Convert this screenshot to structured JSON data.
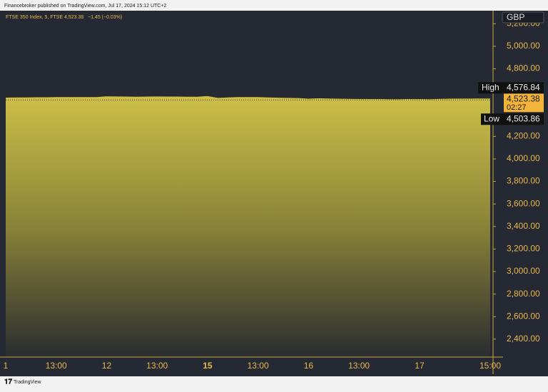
{
  "header": "Financebroker published on TradingView.com, Jul 17, 2024 15:12 UTC+2",
  "footer": "TradingView",
  "chart_data": {
    "type": "area",
    "title": "FTSE 350 Index, 5, FTSE",
    "change": "−1.45 (−0.03%)",
    "currency": "GBP",
    "countdown": "02:27",
    "last_price": {
      "value": 4523.38,
      "label": "4,523.38"
    },
    "high": {
      "name": "High",
      "value": 4576.84,
      "label": "4,576.84"
    },
    "low": {
      "name": "Low",
      "value": 4503.86,
      "label": "4,503.86"
    },
    "categories": [
      "1",
      null,
      null,
      null,
      null,
      "13:00",
      null,
      null,
      null,
      null,
      "12",
      null,
      null,
      null,
      null,
      "13:00",
      null,
      null,
      null,
      null,
      "15",
      null,
      null,
      null,
      null,
      "13:00",
      null,
      null,
      null,
      null,
      "16",
      null,
      null,
      null,
      null,
      "13:00",
      null,
      null,
      null,
      null,
      null,
      "17",
      null,
      null,
      null,
      null,
      null,
      null,
      "15:00"
    ],
    "series": [
      {
        "name": "FTSE 350 Index",
        "color": "#c9bb45",
        "values": [
          4548,
          4549,
          4550,
          4551,
          4551,
          4552,
          4552,
          4553,
          4552,
          4553,
          4560,
          4558,
          4557,
          4556,
          4557,
          4558,
          4557,
          4557,
          4556,
          4556,
          4562,
          4545,
          4550,
          4552,
          4553,
          4552,
          4549,
          4547,
          4545,
          4544,
          4538,
          4542,
          4540,
          4538,
          4537,
          4536,
          4535,
          4536,
          4533,
          4534,
          4536,
          4535,
          4534,
          4537,
          4538,
          4540,
          4539,
          4541,
          4540
        ]
      }
    ],
    "ylim": [
      2247,
      5316
    ],
    "yticks": [
      {
        "value": 2400,
        "label": "2,400.00"
      },
      {
        "value": 2600,
        "label": "2,600.00"
      },
      {
        "value": 2800,
        "label": "2,800.00"
      },
      {
        "value": 3000,
        "label": "3,000.00"
      },
      {
        "value": 3200,
        "label": "3,200.00"
      },
      {
        "value": 3400,
        "label": "3,400.00"
      },
      {
        "value": 3600,
        "label": "3,600.00"
      },
      {
        "value": 3800,
        "label": "3,800.00"
      },
      {
        "value": 4000,
        "label": "4,000.00"
      },
      {
        "value": 4200,
        "label": "4,200.00"
      },
      {
        "value": 4800,
        "label": "4,800.00"
      },
      {
        "value": 5000,
        "label": "5,000.00"
      },
      {
        "value": 5200,
        "label": "5,200.00"
      }
    ],
    "grid": false
  }
}
